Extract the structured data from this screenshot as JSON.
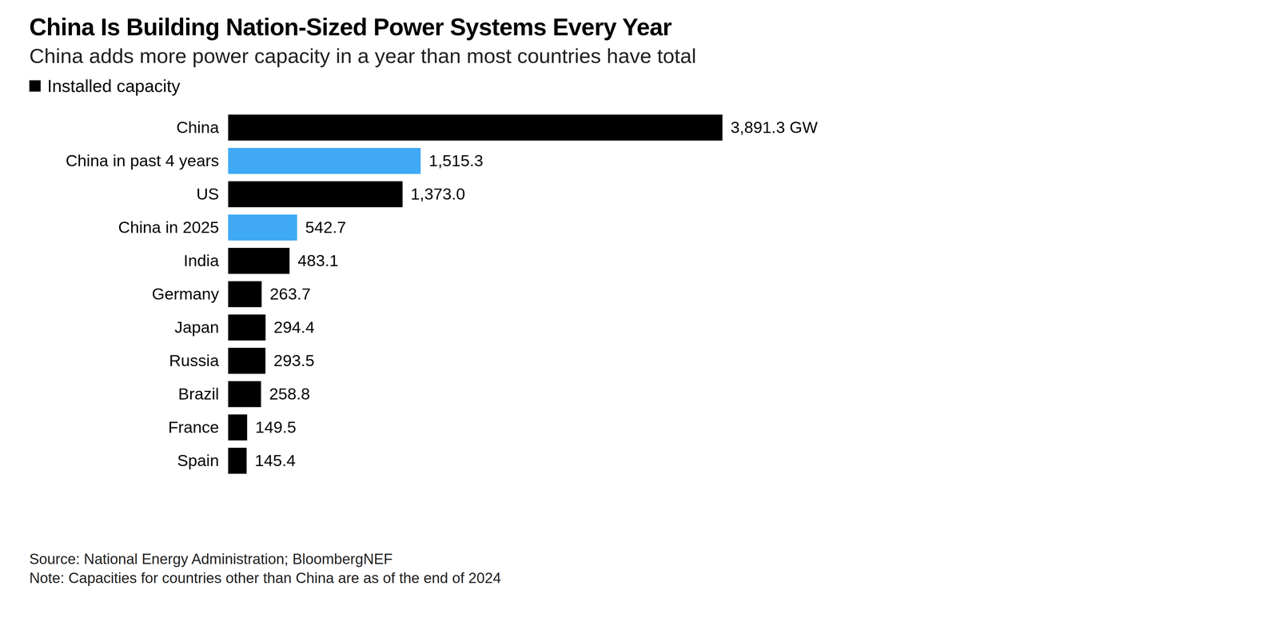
{
  "chart_data": {
    "type": "bar",
    "title": "China Is Building Nation-Sized Power Systems Every Year",
    "subtitle": "China adds more power capacity in a year than most countries have total",
    "orientation": "horizontal",
    "categories": [
      "China",
      "China in past 4 years",
      "US",
      "China in 2025",
      "India",
      "Germany",
      "Japan",
      "Russia",
      "Brazil",
      "France",
      "Spain"
    ],
    "series": [
      {
        "name": "Installed capacity",
        "color": "#000000",
        "values": [
          3891.3,
          1515.3,
          1373.0,
          542.7,
          483.1,
          263.7,
          294.4,
          293.5,
          258.8,
          149.5,
          145.4
        ],
        "value_labels": [
          "3,891.3 GW",
          "1,515.3",
          "1,373.0",
          "542.7",
          "483.1",
          "263.7",
          "294.4",
          "293.5",
          "258.8",
          "149.5",
          "145.4"
        ],
        "colors": [
          "#000000",
          "#3fa9f5",
          "#000000",
          "#3fa9f5",
          "#000000",
          "#000000",
          "#000000",
          "#000000",
          "#000000",
          "#000000",
          "#000000"
        ]
      }
    ],
    "legend": "top-left",
    "data_labels": true,
    "tick_labels": "y",
    "grid": false,
    "source": "Source: National Energy Administration; BloombergNEF",
    "note": "Note: Capacities for countries other than China are as of the end of 2024"
  }
}
